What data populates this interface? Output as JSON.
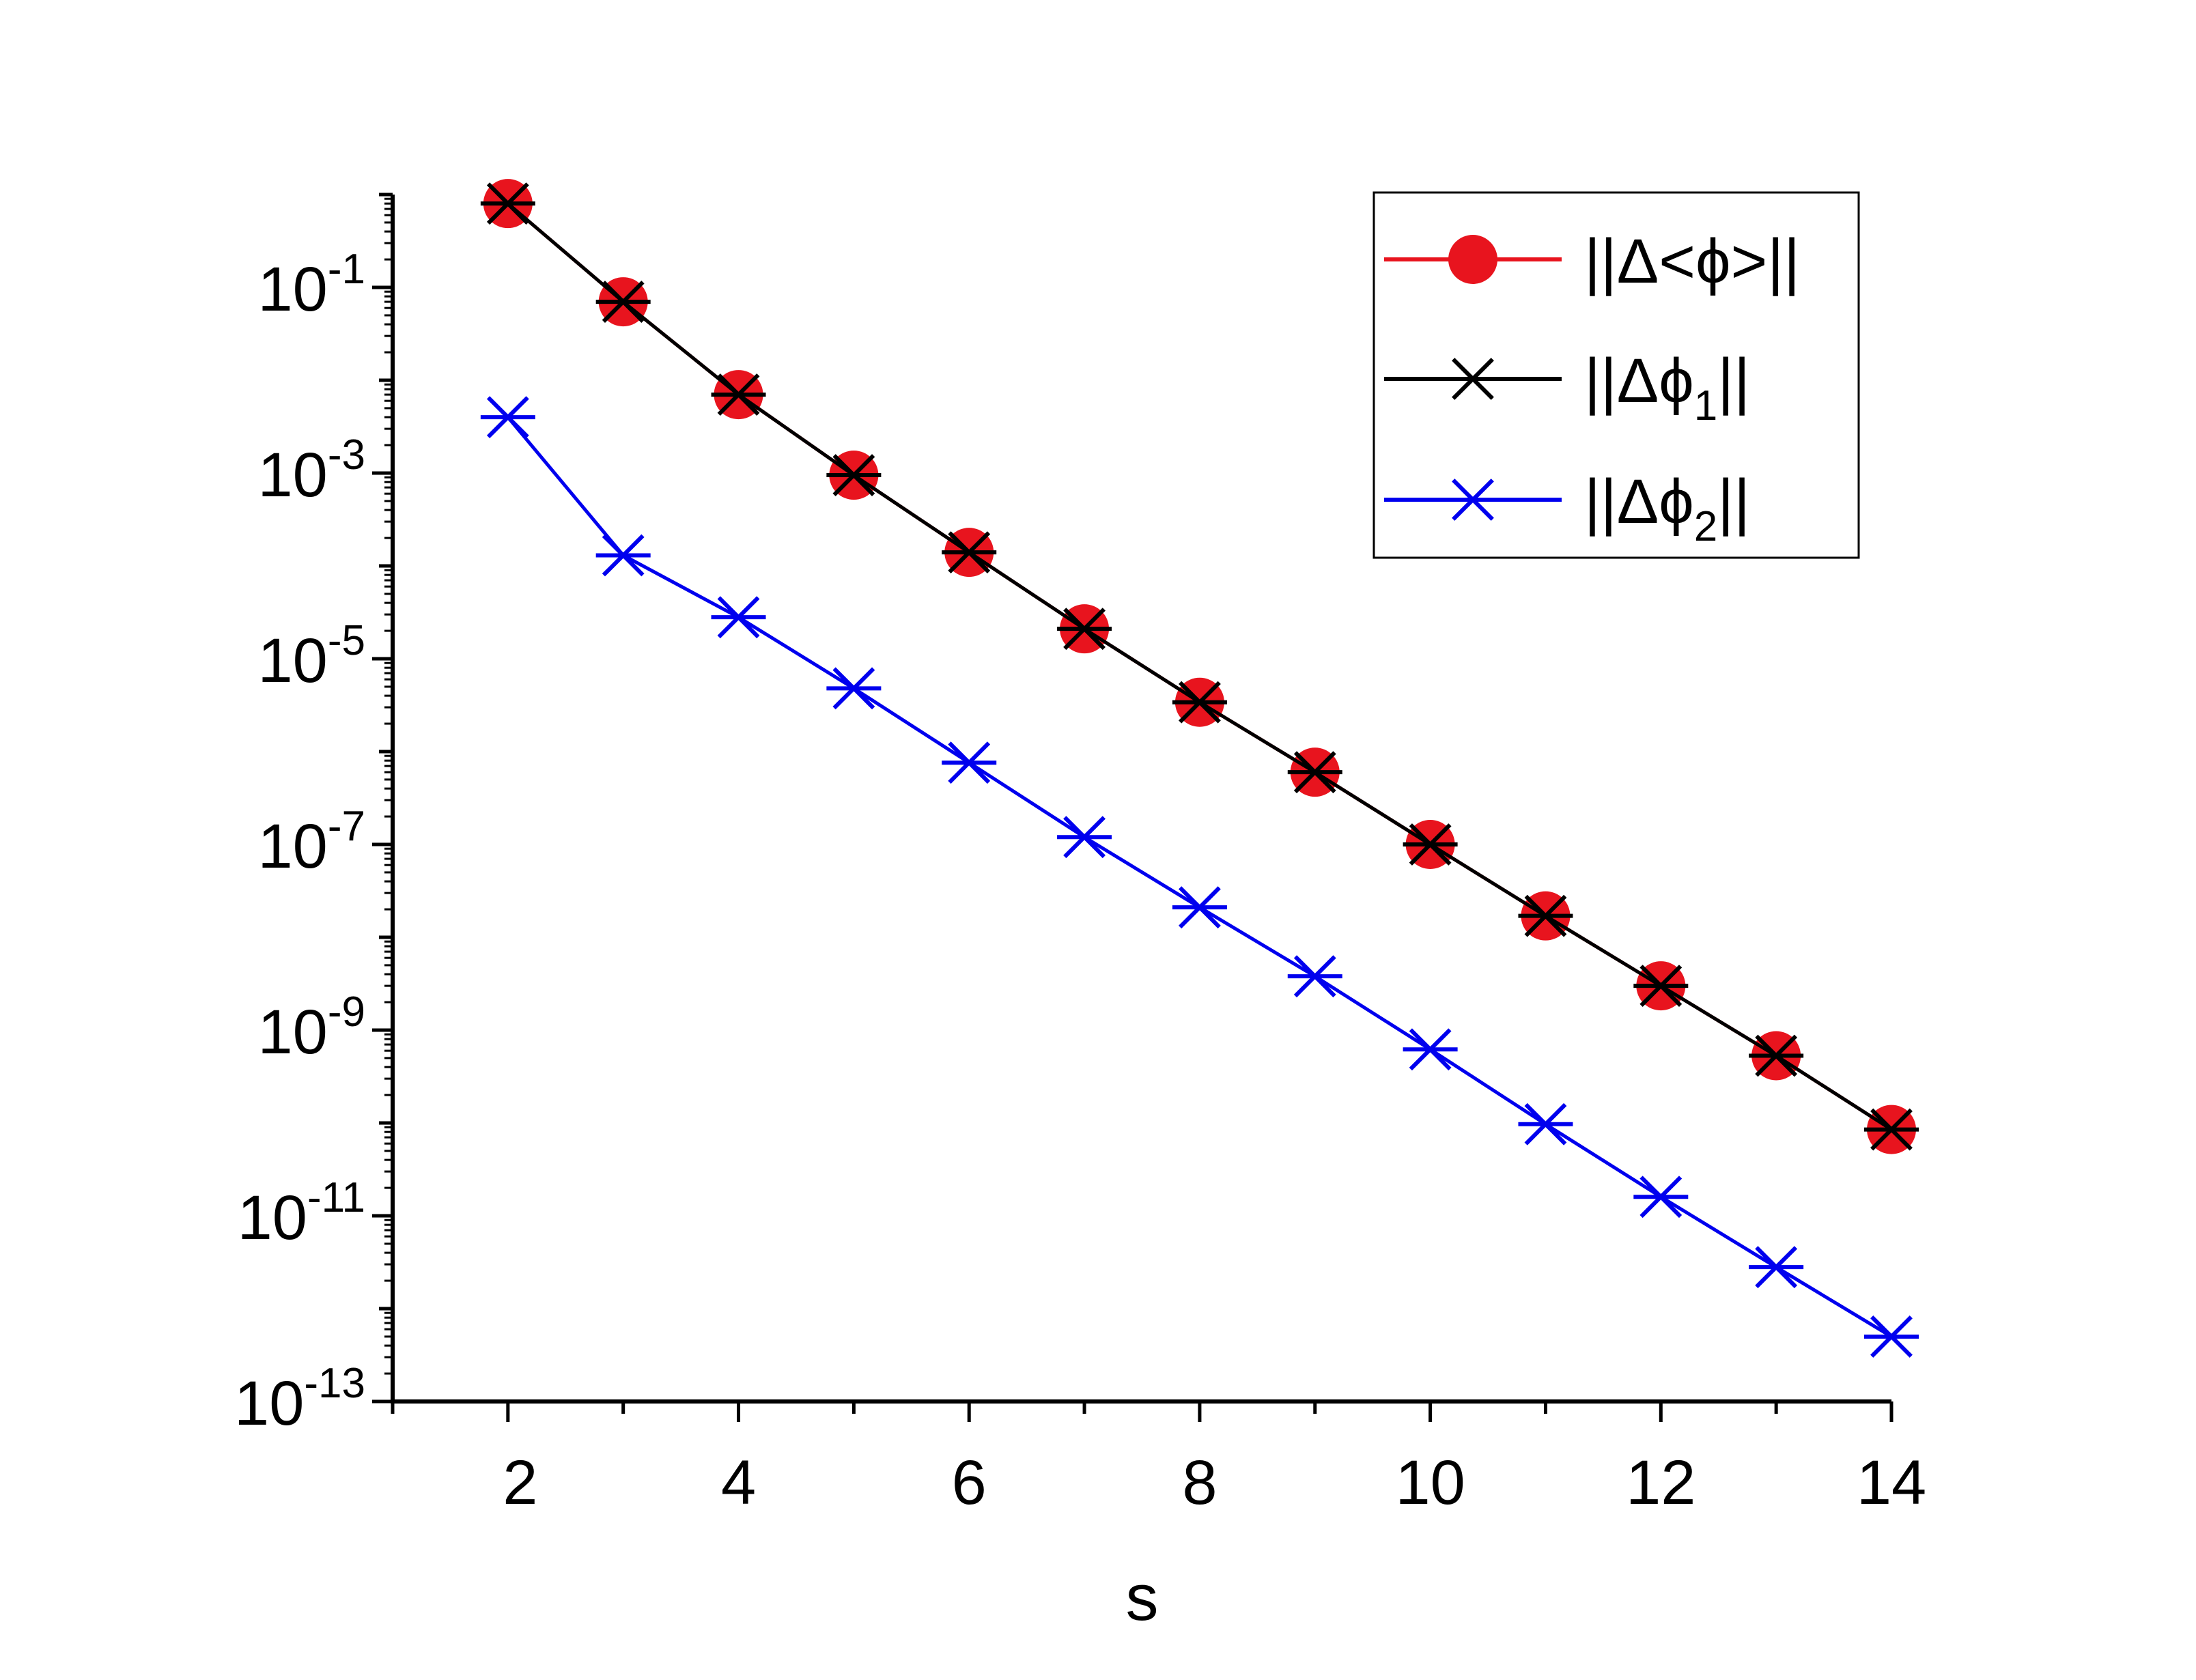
{
  "chart_data": {
    "type": "line",
    "title": "",
    "xlabel": "s",
    "ylabel": "",
    "x_scale": "linear",
    "y_scale": "log",
    "xlim": [
      1,
      14
    ],
    "ylim": [
      1e-13,
      1
    ],
    "x_ticks": [
      2,
      4,
      6,
      8,
      10,
      12,
      14
    ],
    "y_ticks": [
      {
        "exp": -1,
        "label": "10",
        "sup": "-1"
      },
      {
        "exp": -3,
        "label": "10",
        "sup": "-3"
      },
      {
        "exp": -5,
        "label": "10",
        "sup": "-5"
      },
      {
        "exp": -7,
        "label": "10",
        "sup": "-7"
      },
      {
        "exp": -9,
        "label": "10",
        "sup": "-9"
      },
      {
        "exp": -11,
        "label": "10",
        "sup": "-11"
      },
      {
        "exp": -13,
        "label": "10",
        "sup": "-13"
      }
    ],
    "grid": false,
    "legend_position": "top-right",
    "series": [
      {
        "name": "||Δ<ϕ>||",
        "color": "#e8141e",
        "marker": "circle",
        "x": [
          2,
          3,
          4,
          5,
          6,
          7,
          8,
          9,
          10,
          11,
          12,
          13,
          14
        ],
        "y": [
          0.8,
          0.07,
          0.007,
          0.00095,
          0.00014,
          2.1e-05,
          3.4e-06,
          6e-07,
          1e-07,
          1.7e-08,
          3e-09,
          5.3e-10,
          8.5e-11
        ]
      },
      {
        "name_parts": {
          "main": "||Δϕ",
          "sub": "1",
          "tail": "||"
        },
        "color": "#000000",
        "marker": "asterisk",
        "x": [
          2,
          3,
          4,
          5,
          6,
          7,
          8,
          9,
          10,
          11,
          12,
          13,
          14
        ],
        "y": [
          0.8,
          0.07,
          0.007,
          0.00095,
          0.00014,
          2.1e-05,
          3.4e-06,
          6e-07,
          1e-07,
          1.7e-08,
          3e-09,
          5.3e-10,
          8.5e-11
        ]
      },
      {
        "name_parts": {
          "main": "||Δϕ",
          "sub": "2",
          "tail": "||"
        },
        "color": "#0000ee",
        "marker": "asterisk",
        "x": [
          2,
          3,
          4,
          5,
          6,
          7,
          8,
          9,
          10,
          11,
          12,
          13,
          14
        ],
        "y": [
          0.004,
          0.00013,
          2.8e-05,
          4.8e-06,
          7.6e-07,
          1.2e-07,
          2.1e-08,
          3.8e-09,
          6.2e-10,
          9.7e-11,
          1.6e-11,
          2.8e-12,
          5e-13
        ]
      }
    ]
  }
}
